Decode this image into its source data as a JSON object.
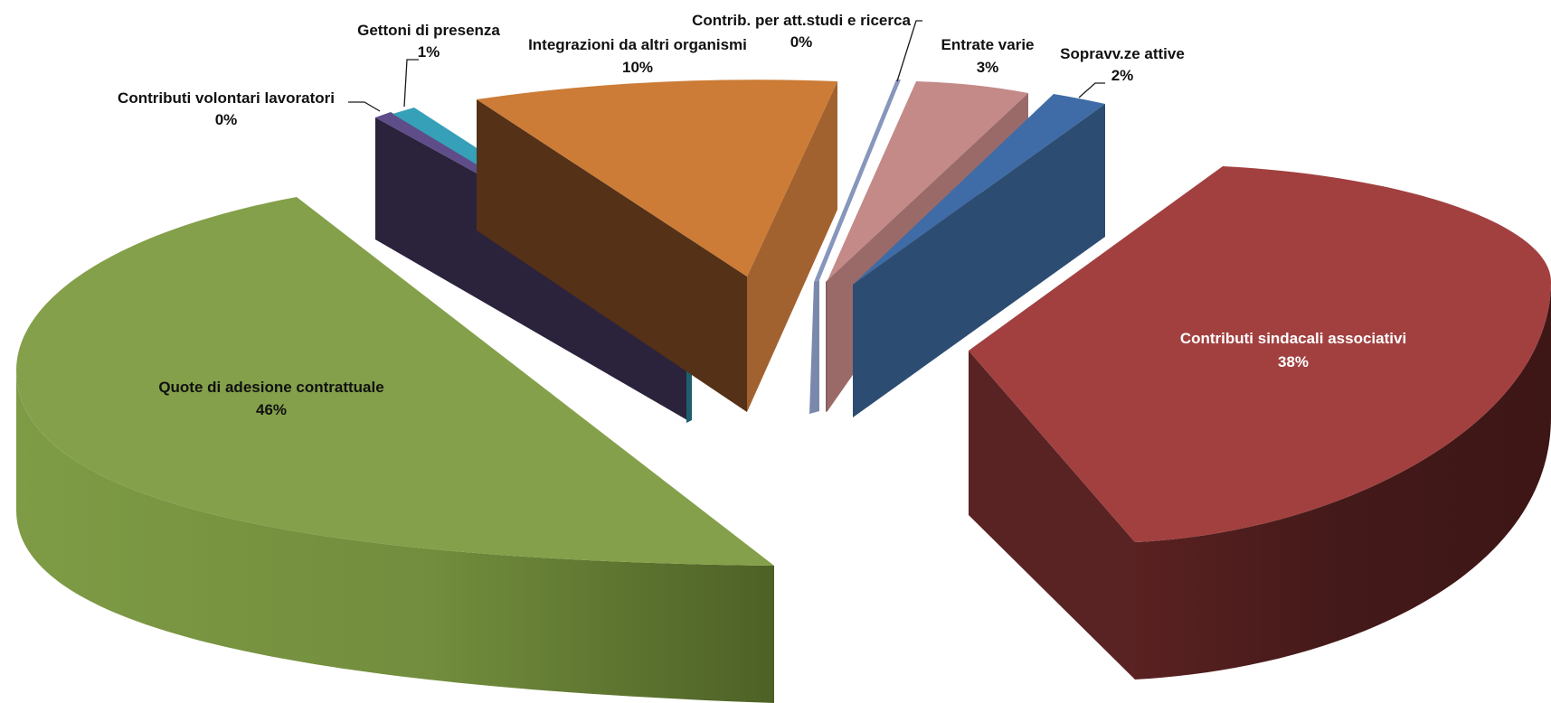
{
  "chart_data": {
    "type": "pie",
    "style": "3d-exploded",
    "title": "",
    "slices": [
      {
        "name": "Quote di adesione contrattuale",
        "value": 46,
        "label": "46%",
        "color": "#84a04a",
        "side": "#5f7733"
      },
      {
        "name": "Contributi  volontari lavoratori",
        "value": 0,
        "label": "0%",
        "color": "#6b5a98",
        "side": "#4a3d70"
      },
      {
        "name": "Gettoni di presenza",
        "value": 1,
        "label": "1%",
        "color": "#36a0b8",
        "side": "#23707f"
      },
      {
        "name": "Integrazioni da altri organismi",
        "value": 10,
        "label": "10%",
        "color": "#cc7c36",
        "side": "#8f5522"
      },
      {
        "name": "Contrib.  per  att.studi e ricerca",
        "value": 0,
        "label": "0%",
        "color": "#8796bc",
        "side": "#6a7aa2"
      },
      {
        "name": "Entrate varie",
        "value": 3,
        "label": "3%",
        "color": "#c48a88",
        "side": "#9a6a69"
      },
      {
        "name": "Sopravv.ze attive",
        "value": 2,
        "label": "2%",
        "color": "#3f6ca6",
        "side": "#2d4c72"
      },
      {
        "name": "Contributi sindacali associativi",
        "value": 38,
        "label": "38%",
        "color": "#a24040",
        "side": "#4a1c1c"
      }
    ]
  }
}
